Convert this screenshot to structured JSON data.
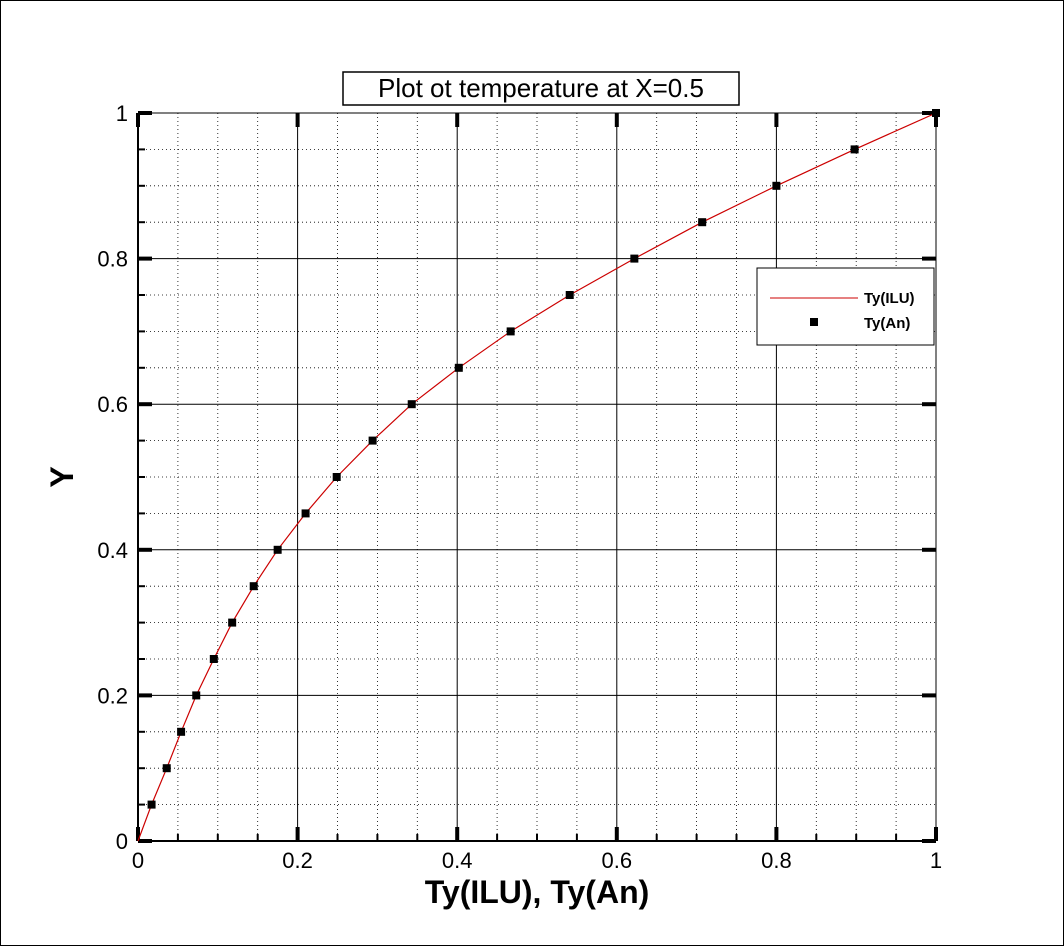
{
  "chart_data": {
    "type": "line",
    "title": "Plot ot temperature at X=0.5",
    "xlabel": "Ty(ILU), Ty(An)",
    "ylabel": "Y",
    "xlim": [
      0,
      1
    ],
    "ylim": [
      0,
      1
    ],
    "x_ticks": [
      "0",
      "0.2",
      "0.4",
      "0.6",
      "0.8",
      "1"
    ],
    "y_ticks": [
      "0",
      "0.2",
      "0.4",
      "0.6",
      "0.8",
      "1"
    ],
    "grid": "major solid, minor dotted",
    "legend_position": "right",
    "series": [
      {
        "name": "Ty(ILU)",
        "style": "line",
        "color": "#cc0000",
        "x": [
          0,
          0.017,
          0.036,
          0.054,
          0.073,
          0.095,
          0.118,
          0.145,
          0.175,
          0.21,
          0.249,
          0.294,
          0.343,
          0.402,
          0.467,
          0.541,
          0.622,
          0.707,
          0.8,
          0.898,
          1.0
        ],
        "y": [
          0,
          0.05,
          0.1,
          0.15,
          0.2,
          0.25,
          0.3,
          0.35,
          0.4,
          0.45,
          0.5,
          0.55,
          0.6,
          0.65,
          0.7,
          0.75,
          0.8,
          0.85,
          0.9,
          0.95,
          1.0
        ]
      },
      {
        "name": "Ty(An)",
        "style": "markers",
        "color": "#000000",
        "x": [
          0.017,
          0.036,
          0.054,
          0.073,
          0.095,
          0.118,
          0.145,
          0.175,
          0.21,
          0.249,
          0.294,
          0.343,
          0.402,
          0.467,
          0.541,
          0.622,
          0.707,
          0.8,
          0.898,
          1.0
        ],
        "y": [
          0.05,
          0.1,
          0.15,
          0.2,
          0.25,
          0.3,
          0.35,
          0.4,
          0.45,
          0.5,
          0.55,
          0.6,
          0.65,
          0.7,
          0.75,
          0.8,
          0.85,
          0.9,
          0.95,
          1.0
        ]
      }
    ]
  }
}
